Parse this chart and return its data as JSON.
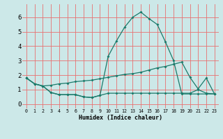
{
  "x": [
    0,
    1,
    2,
    3,
    4,
    5,
    6,
    7,
    8,
    9,
    10,
    11,
    12,
    13,
    14,
    15,
    16,
    17,
    18,
    19,
    20,
    21,
    22,
    23
  ],
  "line1": [
    1.8,
    1.4,
    1.25,
    0.8,
    0.65,
    0.65,
    0.65,
    0.5,
    0.45,
    0.6,
    0.75,
    0.75,
    0.75,
    0.75,
    0.75,
    0.75,
    0.75,
    0.75,
    0.75,
    0.75,
    0.75,
    1.0,
    0.75,
    0.7
  ],
  "line2": [
    1.8,
    1.4,
    1.25,
    1.3,
    1.4,
    1.45,
    1.55,
    1.6,
    1.65,
    1.75,
    1.85,
    1.95,
    2.05,
    2.1,
    2.2,
    2.35,
    2.5,
    2.6,
    2.75,
    2.9,
    1.85,
    1.05,
    1.8,
    0.7
  ],
  "line3": [
    1.8,
    1.4,
    1.25,
    0.8,
    0.65,
    0.65,
    0.65,
    0.5,
    0.45,
    0.6,
    3.3,
    4.35,
    5.3,
    6.0,
    6.35,
    5.9,
    5.5,
    4.3,
    3.0,
    0.7,
    0.7,
    0.7,
    0.7,
    0.7
  ],
  "bg_color": "#cce8e8",
  "grid_color": "#e87070",
  "line_color": "#1a7a6a",
  "xlabel": "Humidex (Indice chaleur)",
  "ylabel_ticks": [
    0,
    1,
    2,
    3,
    4,
    5,
    6
  ],
  "xlim": [
    -0.5,
    23.5
  ],
  "ylim": [
    -0.3,
    6.9
  ],
  "xlabel_fontsize": 6.0,
  "xtick_fontsize": 4.8,
  "ytick_fontsize": 6.5
}
